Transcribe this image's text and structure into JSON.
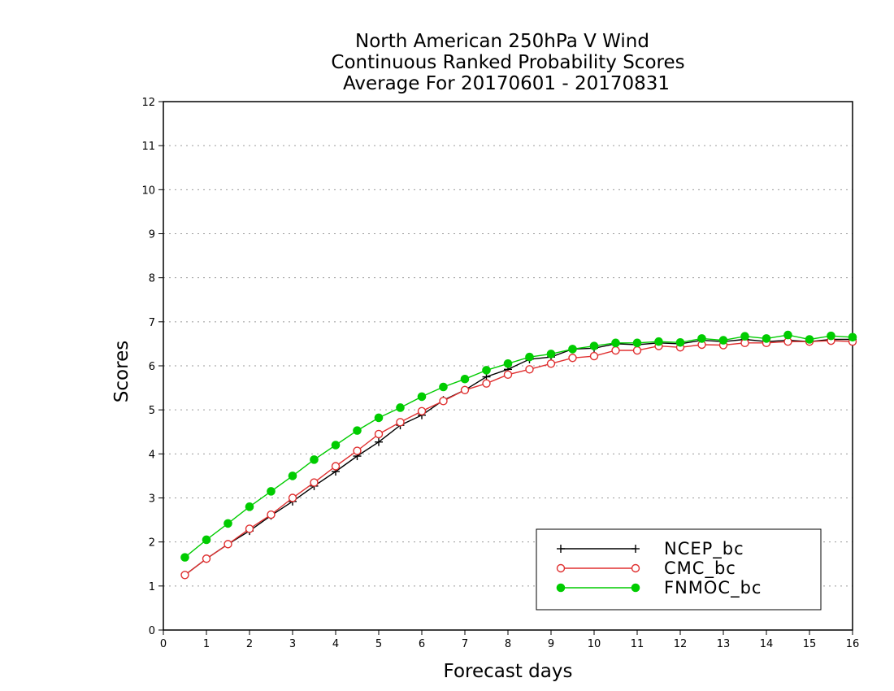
{
  "chart_data": {
    "type": "line",
    "title_lines": [
      "North American 250hPa V Wind",
      "Continuous Ranked Probability Scores",
      "Average For 20170601 - 20170831"
    ],
    "xlabel": "Forecast days",
    "ylabel": "Scores",
    "xlim": [
      0,
      16
    ],
    "ylim": [
      0,
      12
    ],
    "x_ticks": [
      "0",
      "1",
      "2",
      "3",
      "4",
      "5",
      "6",
      "7",
      "8",
      "9",
      "10",
      "11",
      "12",
      "13",
      "14",
      "15",
      "16"
    ],
    "y_ticks": [
      "0",
      "1",
      "2",
      "3",
      "4",
      "5",
      "6",
      "7",
      "8",
      "9",
      "10",
      "11",
      "12"
    ],
    "grid": "horizontal dotted",
    "legend_position": "bottom-right",
    "x": [
      0.5,
      1,
      1.5,
      2,
      2.5,
      3,
      3.5,
      4,
      4.5,
      5,
      5.5,
      6,
      6.5,
      7,
      7.5,
      8,
      8.5,
      9,
      9.5,
      10,
      10.5,
      11,
      11.5,
      12,
      12.5,
      13,
      13.5,
      14,
      14.5,
      15,
      15.5,
      16
    ],
    "series": [
      {
        "name": "NCEP_bc",
        "color": "#000000",
        "marker": "plus",
        "values": [
          1.25,
          1.62,
          1.95,
          2.25,
          2.6,
          2.92,
          3.27,
          3.6,
          3.95,
          4.27,
          4.65,
          4.88,
          5.22,
          5.45,
          5.75,
          5.92,
          6.15,
          6.2,
          6.38,
          6.4,
          6.5,
          6.48,
          6.52,
          6.5,
          6.58,
          6.55,
          6.6,
          6.55,
          6.58,
          6.55,
          6.6,
          6.6
        ]
      },
      {
        "name": "CMC_bc",
        "color": "#e03030",
        "marker": "open-circle",
        "values": [
          1.25,
          1.62,
          1.95,
          2.3,
          2.62,
          3.0,
          3.35,
          3.72,
          4.07,
          4.45,
          4.72,
          4.97,
          5.2,
          5.45,
          5.6,
          5.8,
          5.92,
          6.05,
          6.18,
          6.22,
          6.35,
          6.35,
          6.45,
          6.42,
          6.48,
          6.47,
          6.52,
          6.52,
          6.55,
          6.55,
          6.57,
          6.55
        ]
      },
      {
        "name": "FNMOC_bc",
        "color": "#00cc00",
        "marker": "filled-circle",
        "values": [
          1.65,
          2.05,
          2.42,
          2.8,
          3.15,
          3.5,
          3.87,
          4.2,
          4.53,
          4.82,
          5.05,
          5.3,
          5.52,
          5.7,
          5.9,
          6.05,
          6.2,
          6.27,
          6.38,
          6.45,
          6.52,
          6.52,
          6.55,
          6.53,
          6.62,
          6.58,
          6.67,
          6.62,
          6.7,
          6.6,
          6.68,
          6.65
        ]
      }
    ]
  }
}
